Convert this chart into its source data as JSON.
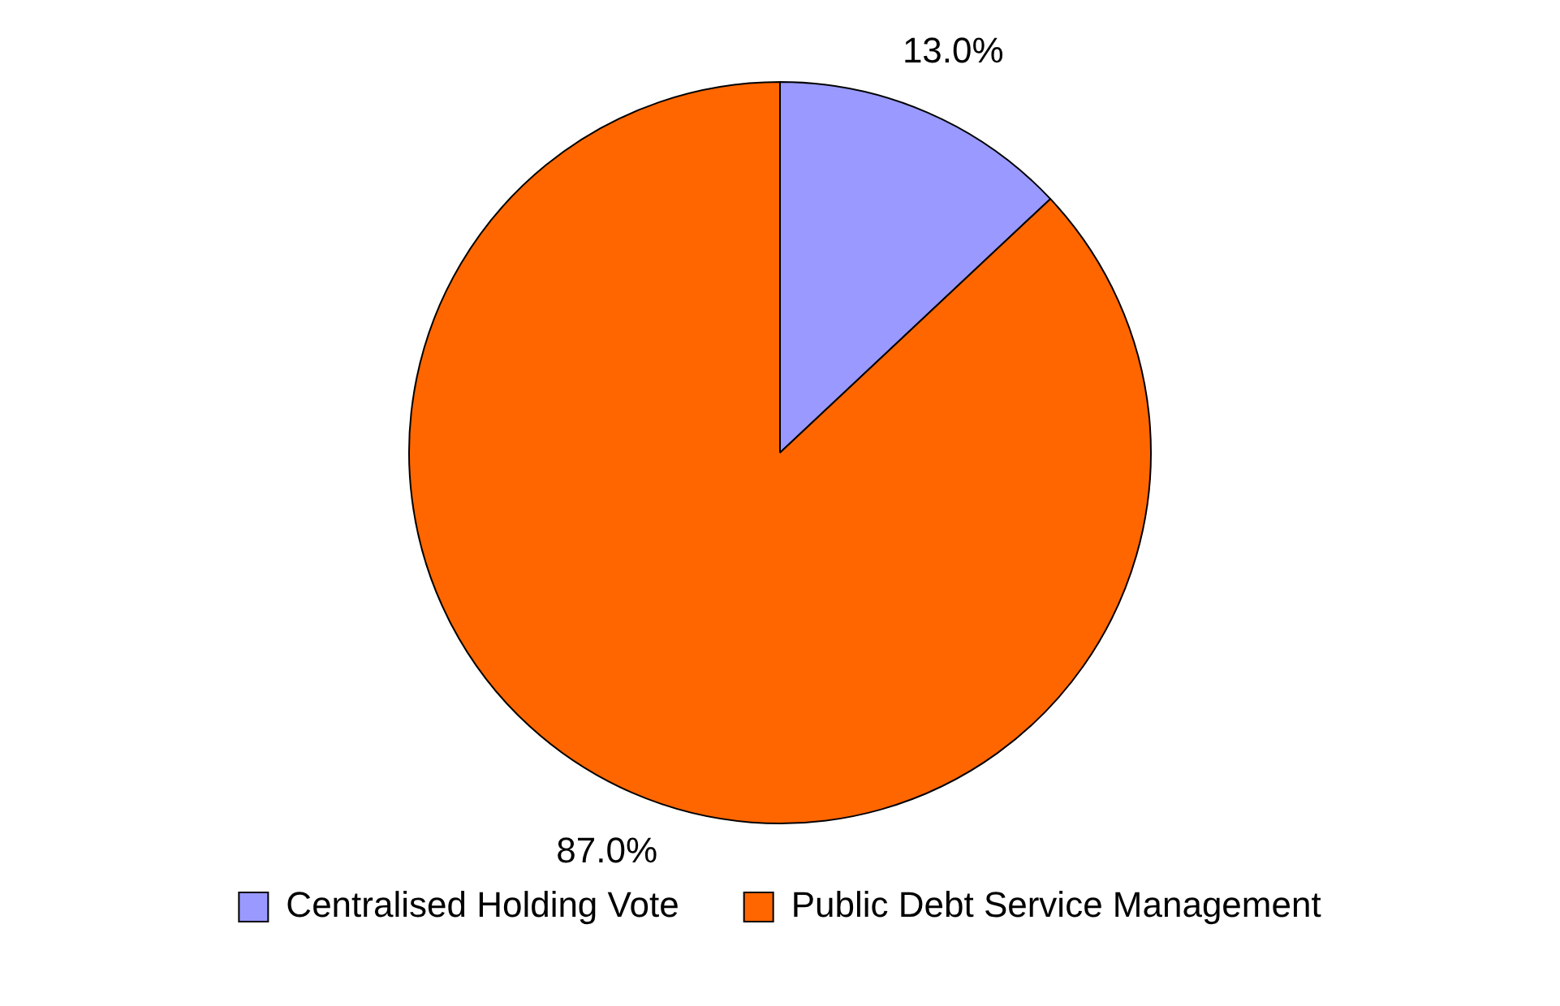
{
  "chart_data": {
    "type": "pie",
    "categories": [
      "Centralised Holding Vote",
      "Public Debt Service Management"
    ],
    "values": [
      13.0,
      87.0
    ],
    "colors": [
      "#9999ff",
      "#ff6600"
    ],
    "value_labels": [
      "13.0%",
      "87.0%"
    ],
    "legend": "bottom"
  }
}
